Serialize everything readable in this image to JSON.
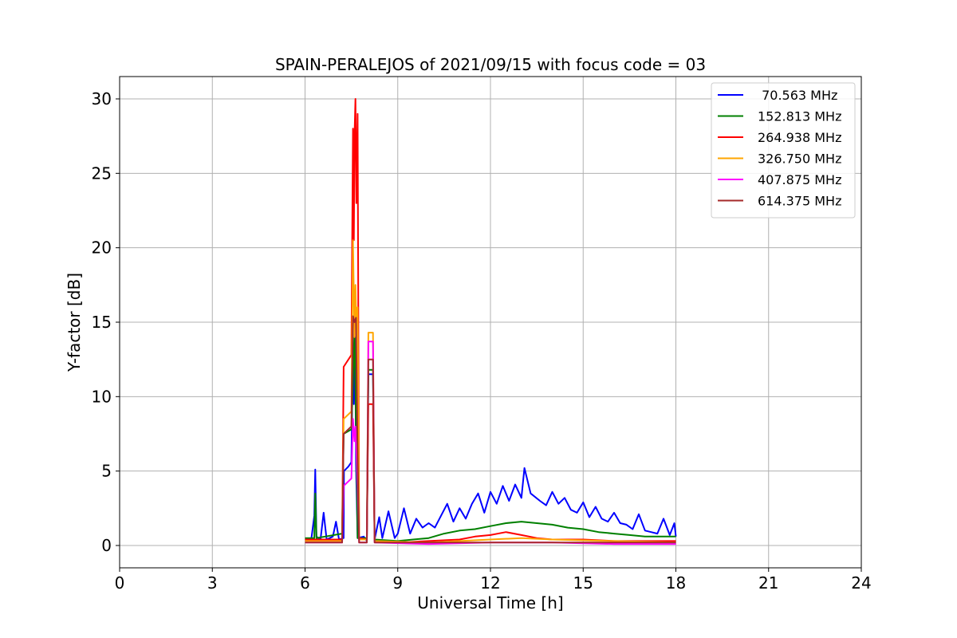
{
  "chart_data": {
    "type": "line",
    "title": "SPAIN-PERALEJOS of 2021/09/15 with focus code = 03",
    "xlabel": "Universal Time [h]",
    "ylabel": "Y-factor [dB]",
    "xlim": [
      0,
      24
    ],
    "ylim": [
      -1.5,
      31.5
    ],
    "xticks": [
      0,
      3,
      6,
      9,
      12,
      15,
      18,
      21,
      24
    ],
    "yticks": [
      0,
      5,
      10,
      15,
      20,
      25,
      30
    ],
    "grid": true,
    "legend_position": "top-right",
    "series": [
      {
        "name": " 70.563 MHz",
        "color": "#0000ff",
        "points": [
          [
            6.0,
            0.4
          ],
          [
            6.2,
            0.4
          ],
          [
            6.3,
            2.0
          ],
          [
            6.33,
            5.1
          ],
          [
            6.37,
            0.6
          ],
          [
            6.5,
            0.4
          ],
          [
            6.6,
            2.2
          ],
          [
            6.7,
            0.4
          ],
          [
            6.9,
            0.6
          ],
          [
            7.0,
            1.6
          ],
          [
            7.1,
            0.4
          ],
          [
            7.25,
            0.5
          ],
          [
            7.26,
            5.0
          ],
          [
            7.4,
            5.3
          ],
          [
            7.5,
            5.6
          ],
          [
            7.55,
            13.5
          ],
          [
            7.58,
            9.5
          ],
          [
            7.62,
            14.0
          ],
          [
            7.65,
            5.5
          ],
          [
            7.7,
            0.5
          ],
          [
            7.9,
            0.6
          ],
          [
            8.0,
            0.3
          ],
          [
            8.05,
            11.5
          ],
          [
            8.2,
            11.5
          ],
          [
            8.25,
            0.4
          ],
          [
            8.4,
            1.9
          ],
          [
            8.5,
            0.5
          ],
          [
            8.7,
            2.3
          ],
          [
            8.9,
            0.5
          ],
          [
            9.0,
            0.8
          ],
          [
            9.2,
            2.5
          ],
          [
            9.4,
            0.8
          ],
          [
            9.6,
            1.8
          ],
          [
            9.8,
            1.2
          ],
          [
            10.0,
            1.5
          ],
          [
            10.2,
            1.2
          ],
          [
            10.4,
            2.0
          ],
          [
            10.6,
            2.8
          ],
          [
            10.8,
            1.6
          ],
          [
            11.0,
            2.5
          ],
          [
            11.2,
            1.8
          ],
          [
            11.4,
            2.8
          ],
          [
            11.6,
            3.5
          ],
          [
            11.8,
            2.2
          ],
          [
            12.0,
            3.6
          ],
          [
            12.2,
            2.8
          ],
          [
            12.4,
            4.0
          ],
          [
            12.6,
            3.0
          ],
          [
            12.8,
            4.1
          ],
          [
            13.0,
            3.2
          ],
          [
            13.1,
            5.2
          ],
          [
            13.3,
            3.5
          ],
          [
            13.6,
            3.0
          ],
          [
            13.8,
            2.7
          ],
          [
            14.0,
            3.6
          ],
          [
            14.2,
            2.8
          ],
          [
            14.4,
            3.2
          ],
          [
            14.6,
            2.4
          ],
          [
            14.8,
            2.2
          ],
          [
            15.0,
            2.9
          ],
          [
            15.2,
            1.9
          ],
          [
            15.4,
            2.6
          ],
          [
            15.6,
            1.8
          ],
          [
            15.8,
            1.6
          ],
          [
            16.0,
            2.2
          ],
          [
            16.2,
            1.5
          ],
          [
            16.4,
            1.4
          ],
          [
            16.6,
            1.1
          ],
          [
            16.8,
            2.1
          ],
          [
            17.0,
            1.0
          ],
          [
            17.2,
            0.9
          ],
          [
            17.4,
            0.8
          ],
          [
            17.6,
            1.8
          ],
          [
            17.8,
            0.7
          ],
          [
            17.95,
            1.5
          ],
          [
            18.0,
            0.6
          ]
        ]
      },
      {
        "name": "152.813 MHz",
        "color": "#008000",
        "points": [
          [
            6.0,
            0.5
          ],
          [
            6.3,
            0.5
          ],
          [
            6.33,
            3.5
          ],
          [
            6.37,
            0.5
          ],
          [
            7.2,
            0.8
          ],
          [
            7.25,
            7.5
          ],
          [
            7.5,
            7.8
          ],
          [
            7.55,
            11.0
          ],
          [
            7.6,
            14.5
          ],
          [
            7.65,
            8.0
          ],
          [
            7.7,
            0.5
          ],
          [
            8.0,
            0.5
          ],
          [
            8.05,
            11.8
          ],
          [
            8.2,
            11.8
          ],
          [
            8.25,
            0.4
          ],
          [
            9.0,
            0.3
          ],
          [
            9.5,
            0.4
          ],
          [
            10.0,
            0.5
          ],
          [
            10.5,
            0.8
          ],
          [
            11.0,
            1.0
          ],
          [
            11.5,
            1.1
          ],
          [
            12.0,
            1.3
          ],
          [
            12.5,
            1.5
          ],
          [
            13.0,
            1.6
          ],
          [
            13.5,
            1.5
          ],
          [
            14.0,
            1.4
          ],
          [
            14.5,
            1.2
          ],
          [
            15.0,
            1.1
          ],
          [
            15.5,
            0.9
          ],
          [
            16.0,
            0.8
          ],
          [
            16.5,
            0.7
          ],
          [
            17.0,
            0.6
          ],
          [
            17.5,
            0.6
          ],
          [
            18.0,
            0.6
          ]
        ]
      },
      {
        "name": "264.938 MHz",
        "color": "#ff0000",
        "points": [
          [
            6.0,
            0.4
          ],
          [
            7.2,
            0.4
          ],
          [
            7.25,
            12.0
          ],
          [
            7.5,
            12.8
          ],
          [
            7.55,
            28.0
          ],
          [
            7.58,
            20.5
          ],
          [
            7.6,
            27.5
          ],
          [
            7.63,
            30.0
          ],
          [
            7.66,
            23.0
          ],
          [
            7.7,
            29.0
          ],
          [
            7.75,
            0.5
          ],
          [
            8.0,
            0.4
          ],
          [
            8.05,
            9.5
          ],
          [
            8.2,
            9.5
          ],
          [
            8.25,
            0.3
          ],
          [
            9.0,
            0.2
          ],
          [
            10.0,
            0.3
          ],
          [
            11.0,
            0.4
          ],
          [
            11.5,
            0.6
          ],
          [
            12.0,
            0.7
          ],
          [
            12.5,
            0.9
          ],
          [
            13.0,
            0.7
          ],
          [
            13.5,
            0.5
          ],
          [
            14.0,
            0.4
          ],
          [
            15.0,
            0.4
          ],
          [
            16.0,
            0.3
          ],
          [
            17.0,
            0.3
          ],
          [
            18.0,
            0.3
          ]
        ]
      },
      {
        "name": "326.750 MHz",
        "color": "#ffa500",
        "points": [
          [
            6.0,
            0.3
          ],
          [
            7.2,
            0.3
          ],
          [
            7.25,
            8.5
          ],
          [
            7.5,
            9.0
          ],
          [
            7.55,
            20.5
          ],
          [
            7.6,
            14.0
          ],
          [
            7.63,
            17.5
          ],
          [
            7.66,
            15.0
          ],
          [
            7.7,
            16.0
          ],
          [
            7.75,
            0.4
          ],
          [
            8.0,
            0.4
          ],
          [
            8.05,
            14.3
          ],
          [
            8.2,
            14.3
          ],
          [
            8.25,
            0.3
          ],
          [
            10.0,
            0.2
          ],
          [
            12.0,
            0.4
          ],
          [
            13.0,
            0.5
          ],
          [
            14.0,
            0.4
          ],
          [
            16.0,
            0.3
          ],
          [
            18.0,
            0.2
          ]
        ]
      },
      {
        "name": "407.875 MHz",
        "color": "#ff00ff",
        "points": [
          [
            6.0,
            0.2
          ],
          [
            7.2,
            0.2
          ],
          [
            7.25,
            4.0
          ],
          [
            7.5,
            4.5
          ],
          [
            7.55,
            8.5
          ],
          [
            7.6,
            7.0
          ],
          [
            7.63,
            8.0
          ],
          [
            7.7,
            4.0
          ],
          [
            7.75,
            0.2
          ],
          [
            8.0,
            0.2
          ],
          [
            8.05,
            13.7
          ],
          [
            8.2,
            13.7
          ],
          [
            8.25,
            0.2
          ],
          [
            10.0,
            0.1
          ],
          [
            12.0,
            0.2
          ],
          [
            14.0,
            0.2
          ],
          [
            16.0,
            0.1
          ],
          [
            18.0,
            0.1
          ]
        ]
      },
      {
        "name": "614.375 MHz",
        "color": "#a52a2a",
        "points": [
          [
            6.0,
            0.2
          ],
          [
            7.2,
            0.2
          ],
          [
            7.25,
            7.5
          ],
          [
            7.5,
            8.0
          ],
          [
            7.55,
            15.4
          ],
          [
            7.6,
            15.0
          ],
          [
            7.65,
            15.3
          ],
          [
            7.7,
            6.0
          ],
          [
            7.75,
            0.2
          ],
          [
            8.0,
            0.2
          ],
          [
            8.05,
            12.5
          ],
          [
            8.2,
            12.5
          ],
          [
            8.25,
            0.2
          ],
          [
            10.0,
            0.2
          ],
          [
            12.0,
            0.2
          ],
          [
            14.0,
            0.2
          ],
          [
            16.0,
            0.2
          ],
          [
            18.0,
            0.2
          ]
        ]
      }
    ]
  }
}
